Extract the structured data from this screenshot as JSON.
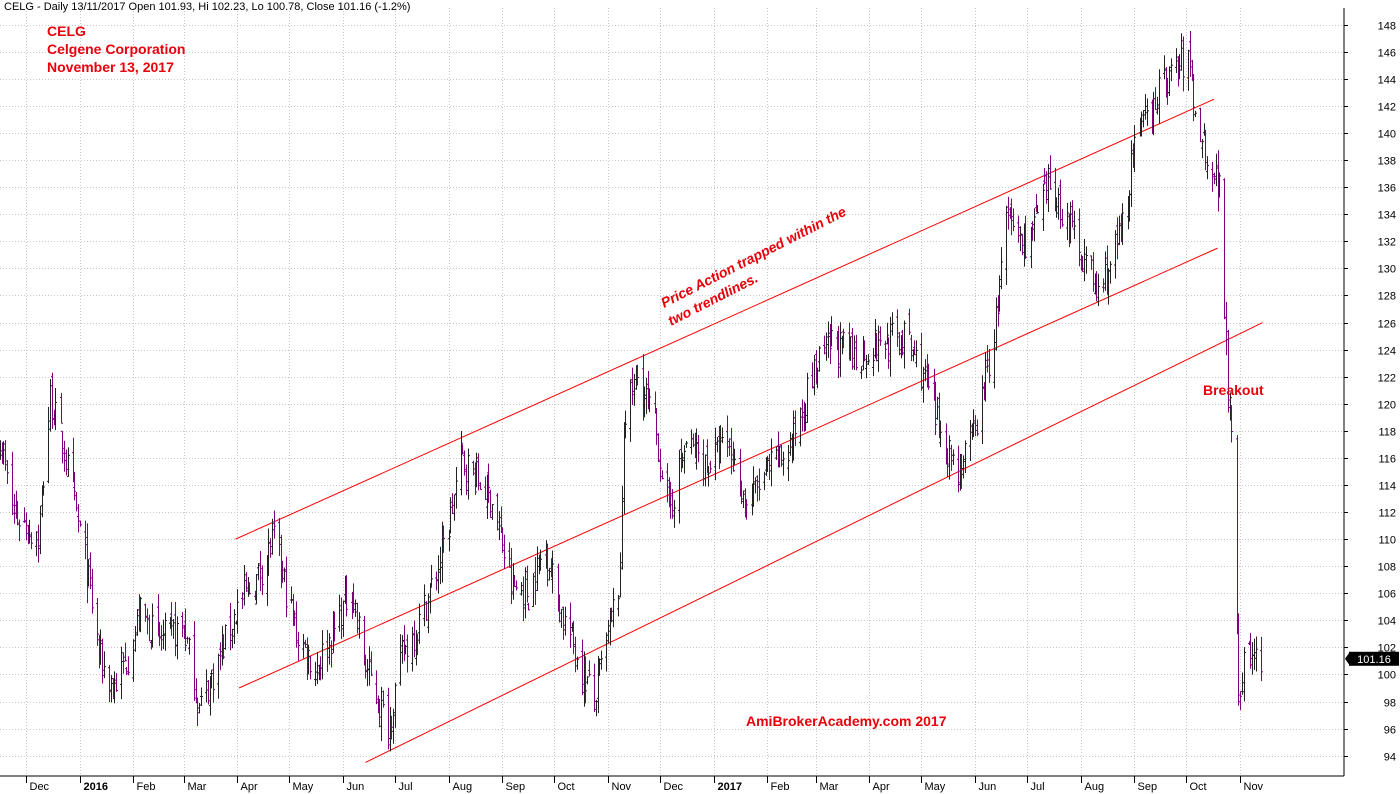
{
  "header": {
    "text": "CELG - Daily 13/11/2017 Open 101.93, Hi 102.23, Lo 100.78, Close 101.16 (-1.2%)"
  },
  "title_block": {
    "ticker": "CELG",
    "company": "Celgene Corporation",
    "date": "November 13, 2017"
  },
  "annotations": {
    "channel_note_line1": "Price Action trapped within the",
    "channel_note_line2": "two trendlines.",
    "breakout": "Breakout",
    "watermark": "AmiBrokerAcademy.com  2017"
  },
  "last_price_label": "101.16",
  "colors": {
    "up_bar": "#222222",
    "down_bar": "#800080",
    "trendline": "#ff0000",
    "annotation_text": "#e8000b",
    "grid": "#c8c8c8",
    "price_tag_bg": "#000000",
    "price_tag_text": "#ffffff"
  },
  "chart_data": {
    "type": "bar",
    "subtype": "ohlc-daily-price",
    "ticker": "CELG",
    "y_axis": {
      "position": "right",
      "range": [
        92.5,
        148.5
      ],
      "ticks": [
        94,
        96,
        98,
        100,
        102,
        104,
        106,
        108,
        110,
        112,
        114,
        116,
        118,
        120,
        122,
        124,
        126,
        128,
        130,
        132,
        134,
        136,
        138,
        140,
        142,
        144,
        146,
        148
      ]
    },
    "x_axis": {
      "range": [
        "2015-11-16",
        "2017-12-31"
      ],
      "tick_labels": [
        {
          "label": "Dec",
          "date": "2015-12-01"
        },
        {
          "label": "2016",
          "date": "2016-01-01",
          "bold": true
        },
        {
          "label": "Feb",
          "date": "2016-02-01"
        },
        {
          "label": "Mar",
          "date": "2016-03-01"
        },
        {
          "label": "Apr",
          "date": "2016-04-01"
        },
        {
          "label": "May",
          "date": "2016-05-01"
        },
        {
          "label": "Jun",
          "date": "2016-06-01"
        },
        {
          "label": "Jul",
          "date": "2016-07-01"
        },
        {
          "label": "Aug",
          "date": "2016-08-01"
        },
        {
          "label": "Sep",
          "date": "2016-09-01"
        },
        {
          "label": "Oct",
          "date": "2016-10-01"
        },
        {
          "label": "Nov",
          "date": "2016-11-01"
        },
        {
          "label": "Dec",
          "date": "2016-12-01"
        },
        {
          "label": "2017",
          "date": "2017-01-01",
          "bold": true
        },
        {
          "label": "Feb",
          "date": "2017-02-01"
        },
        {
          "label": "Mar",
          "date": "2017-03-01"
        },
        {
          "label": "Apr",
          "date": "2017-04-01"
        },
        {
          "label": "May",
          "date": "2017-05-01"
        },
        {
          "label": "Jun",
          "date": "2017-06-01"
        },
        {
          "label": "Jul",
          "date": "2017-07-01"
        },
        {
          "label": "Aug",
          "date": "2017-08-01"
        },
        {
          "label": "Sep",
          "date": "2017-09-01"
        },
        {
          "label": "Oct",
          "date": "2017-10-01"
        },
        {
          "label": "Nov",
          "date": "2017-11-01"
        }
      ]
    },
    "grid": true,
    "last_close": 101.16,
    "price_path": [
      [
        "2015-11-16",
        117.5
      ],
      [
        "2015-11-23",
        112.0
      ],
      [
        "2015-12-01",
        111.0
      ],
      [
        "2015-12-08",
        110.0
      ],
      [
        "2015-12-15",
        120.5
      ],
      [
        "2015-12-23",
        116.5
      ],
      [
        "2016-01-04",
        108.5
      ],
      [
        "2016-01-13",
        101.0
      ],
      [
        "2016-01-20",
        99.0
      ],
      [
        "2016-01-28",
        101.0
      ],
      [
        "2016-02-05",
        104.5
      ],
      [
        "2016-02-16",
        102.5
      ],
      [
        "2016-03-01",
        103.5
      ],
      [
        "2016-03-10",
        97.5
      ],
      [
        "2016-03-21",
        101.0
      ],
      [
        "2016-04-01",
        105.0
      ],
      [
        "2016-04-12",
        107.0
      ],
      [
        "2016-04-22",
        110.0
      ],
      [
        "2016-05-05",
        103.0
      ],
      [
        "2016-05-16",
        100.5
      ],
      [
        "2016-05-26",
        103.0
      ],
      [
        "2016-06-06",
        106.5
      ],
      [
        "2016-06-13",
        101.0
      ],
      [
        "2016-06-27",
        96.0
      ],
      [
        "2016-07-05",
        101.5
      ],
      [
        "2016-07-14",
        103.5
      ],
      [
        "2016-07-25",
        107.5
      ],
      [
        "2016-08-01",
        111.0
      ],
      [
        "2016-08-08",
        116.0
      ],
      [
        "2016-08-17",
        114.5
      ],
      [
        "2016-08-26",
        113.0
      ],
      [
        "2016-09-06",
        106.5
      ],
      [
        "2016-09-16",
        106.0
      ],
      [
        "2016-09-26",
        109.5
      ],
      [
        "2016-10-04",
        105.0
      ],
      [
        "2016-10-14",
        101.5
      ],
      [
        "2016-10-24",
        98.0
      ],
      [
        "2016-11-01",
        103.0
      ],
      [
        "2016-11-08",
        107.0
      ],
      [
        "2016-11-10",
        119.0
      ],
      [
        "2016-11-18",
        122.0
      ],
      [
        "2016-11-28",
        118.5
      ],
      [
        "2016-12-06",
        112.0
      ],
      [
        "2016-12-16",
        117.0
      ],
      [
        "2016-12-28",
        115.5
      ],
      [
        "2017-01-09",
        117.0
      ],
      [
        "2017-01-20",
        112.5
      ],
      [
        "2017-02-01",
        115.0
      ],
      [
        "2017-02-13",
        116.5
      ],
      [
        "2017-02-27",
        122.0
      ],
      [
        "2017-03-10",
        124.5
      ],
      [
        "2017-03-24",
        123.5
      ],
      [
        "2017-04-07",
        124.5
      ],
      [
        "2017-04-21",
        125.0
      ],
      [
        "2017-05-01",
        122.5
      ],
      [
        "2017-05-10",
        118.5
      ],
      [
        "2017-05-22",
        115.0
      ],
      [
        "2017-06-01",
        118.0
      ],
      [
        "2017-06-12",
        125.0
      ],
      [
        "2017-06-19",
        133.5
      ],
      [
        "2017-07-01",
        132.0
      ],
      [
        "2017-07-14",
        136.0
      ],
      [
        "2017-07-24",
        133.5
      ],
      [
        "2017-08-04",
        130.5
      ],
      [
        "2017-08-11",
        128.0
      ],
      [
        "2017-08-24",
        132.5
      ],
      [
        "2017-09-01",
        139.0
      ],
      [
        "2017-09-12",
        142.5
      ],
      [
        "2017-09-22",
        144.5
      ],
      [
        "2017-10-02",
        145.5
      ],
      [
        "2017-10-06",
        141.5
      ],
      [
        "2017-10-13",
        138.5
      ],
      [
        "2017-10-20",
        136.0
      ],
      [
        "2017-10-25",
        121.5
      ],
      [
        "2017-10-27",
        119.0
      ],
      [
        "2017-10-31",
        98.5
      ],
      [
        "2017-11-03",
        101.0
      ],
      [
        "2017-11-08",
        101.5
      ],
      [
        "2017-11-13",
        101.16
      ]
    ],
    "trendlines": [
      {
        "name": "upper",
        "from": [
          "2016-03-31",
          110.0
        ],
        "to": [
          "2017-10-17",
          142.5
        ]
      },
      {
        "name": "middle",
        "from": [
          "2016-04-02",
          99.0
        ],
        "to": [
          "2017-10-19",
          131.5
        ]
      },
      {
        "name": "lower",
        "from": [
          "2016-06-14",
          93.5
        ],
        "to": [
          "2017-11-14",
          126.0
        ]
      }
    ]
  }
}
